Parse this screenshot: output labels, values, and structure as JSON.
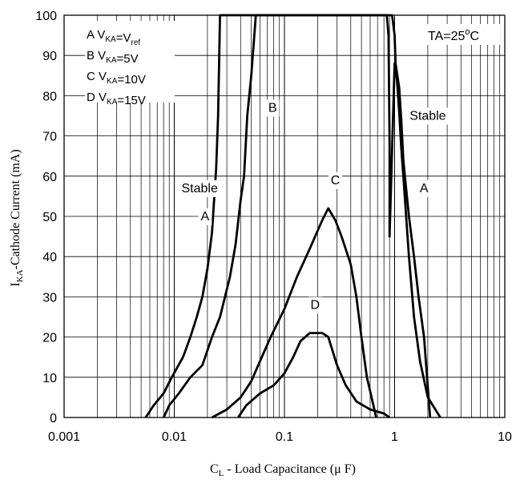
{
  "chart_data": {
    "type": "line",
    "xscale": "log",
    "xlim": [
      0.001,
      10
    ],
    "ylim": [
      0,
      100
    ],
    "grid": true,
    "xticks": [
      {
        "value": 0.001,
        "label": "0.001"
      },
      {
        "value": 0.01,
        "label": "0.01"
      },
      {
        "value": 0.1,
        "label": "0.1"
      },
      {
        "value": 1,
        "label": "1"
      },
      {
        "value": 10,
        "label": "10"
      }
    ],
    "yticks": [
      0,
      10,
      20,
      30,
      40,
      50,
      60,
      70,
      80,
      90,
      100
    ],
    "xlabel": {
      "main": "C",
      "sub": "L",
      "rest": " - Load Capacitance (μ F)"
    },
    "ylabel": {
      "main": "I",
      "sub": "KA",
      "rest": "-Cathode Current (mA)"
    },
    "legend": [
      {
        "letter": "A",
        "text": " V",
        "sub": "KA",
        "text2": "=V",
        "sub2": "ref",
        "text3": ""
      },
      {
        "letter": "B",
        "text": " V",
        "sub": "KA",
        "text2": "=5V",
        "sub2": "",
        "text3": ""
      },
      {
        "letter": "C",
        "text": " V",
        "sub": "KA",
        "text2": "=10V",
        "sub2": "",
        "text3": ""
      },
      {
        "letter": "D",
        "text": " V",
        "sub": "KA",
        "text2": "=15V",
        "sub2": "",
        "text3": ""
      }
    ],
    "legend_position": "top-left",
    "condition": {
      "text": "TA=25",
      "sup": "o",
      "unit": "C"
    },
    "annotations": [
      {
        "text": "Stable",
        "x": 0.017,
        "y": 56
      },
      {
        "text": "A",
        "x": 0.019,
        "y": 49
      },
      {
        "text": "B",
        "x": 0.078,
        "y": 76
      },
      {
        "text": "C",
        "x": 0.29,
        "y": 58
      },
      {
        "text": "D",
        "x": 0.19,
        "y": 27
      },
      {
        "text": "Stable",
        "x": 2.0,
        "y": 74
      },
      {
        "text": "A",
        "x": 1.85,
        "y": 56
      }
    ],
    "series": [
      {
        "points": [
          [
            0.0055,
            0
          ],
          [
            0.0065,
            3
          ],
          [
            0.008,
            6
          ],
          [
            0.0095,
            10
          ],
          [
            0.012,
            15
          ],
          [
            0.014,
            20
          ],
          [
            0.016,
            25
          ],
          [
            0.018,
            30
          ],
          [
            0.02,
            37
          ],
          [
            0.022,
            46
          ],
          [
            0.023,
            54
          ],
          [
            0.024,
            62
          ],
          [
            0.025,
            75
          ],
          [
            0.026,
            100
          ],
          [
            0.85,
            100
          ],
          [
            0.88,
            95
          ],
          [
            0.9,
            68
          ],
          [
            0.9,
            45
          ],
          [
            1.0,
            88
          ],
          [
            1.05,
            84
          ],
          [
            1.1,
            76
          ],
          [
            1.15,
            67
          ],
          [
            1.2,
            60
          ],
          [
            1.35,
            40
          ],
          [
            1.5,
            25
          ],
          [
            1.7,
            14
          ],
          [
            2.0,
            5
          ],
          [
            2.6,
            0
          ]
        ]
      },
      {
        "points": [
          [
            0.008,
            0
          ],
          [
            0.009,
            3
          ],
          [
            0.011,
            6
          ],
          [
            0.014,
            10
          ],
          [
            0.018,
            13
          ],
          [
            0.022,
            20
          ],
          [
            0.026,
            25
          ],
          [
            0.032,
            35
          ],
          [
            0.036,
            43
          ],
          [
            0.04,
            54
          ],
          [
            0.043,
            60
          ],
          [
            0.046,
            75
          ],
          [
            0.05,
            85
          ],
          [
            0.055,
            100
          ],
          [
            0.95,
            100
          ],
          [
            1.0,
            95
          ],
          [
            1.02,
            88
          ],
          [
            1.1,
            82
          ],
          [
            1.15,
            74
          ],
          [
            1.2,
            64
          ],
          [
            1.25,
            59
          ],
          [
            1.35,
            50
          ],
          [
            1.5,
            40
          ],
          [
            1.65,
            30
          ],
          [
            1.85,
            20
          ],
          [
            2.1,
            0
          ]
        ]
      },
      {
        "points": [
          [
            0.022,
            0
          ],
          [
            0.03,
            2
          ],
          [
            0.04,
            5
          ],
          [
            0.05,
            9
          ],
          [
            0.06,
            14
          ],
          [
            0.075,
            20
          ],
          [
            0.1,
            27
          ],
          [
            0.13,
            35
          ],
          [
            0.17,
            42
          ],
          [
            0.22,
            49
          ],
          [
            0.25,
            52
          ],
          [
            0.29,
            49
          ],
          [
            0.33,
            45
          ],
          [
            0.4,
            38
          ],
          [
            0.45,
            30
          ],
          [
            0.5,
            20
          ],
          [
            0.56,
            10
          ],
          [
            0.63,
            4
          ],
          [
            0.68,
            0
          ]
        ]
      },
      {
        "points": [
          [
            0.038,
            0
          ],
          [
            0.045,
            3
          ],
          [
            0.06,
            6
          ],
          [
            0.08,
            8
          ],
          [
            0.1,
            11
          ],
          [
            0.12,
            15
          ],
          [
            0.14,
            19
          ],
          [
            0.17,
            21
          ],
          [
            0.2,
            21
          ],
          [
            0.22,
            21
          ],
          [
            0.25,
            20
          ],
          [
            0.3,
            13
          ],
          [
            0.36,
            8
          ],
          [
            0.45,
            4
          ],
          [
            0.6,
            2
          ],
          [
            0.8,
            1
          ],
          [
            0.9,
            0
          ]
        ]
      }
    ]
  }
}
